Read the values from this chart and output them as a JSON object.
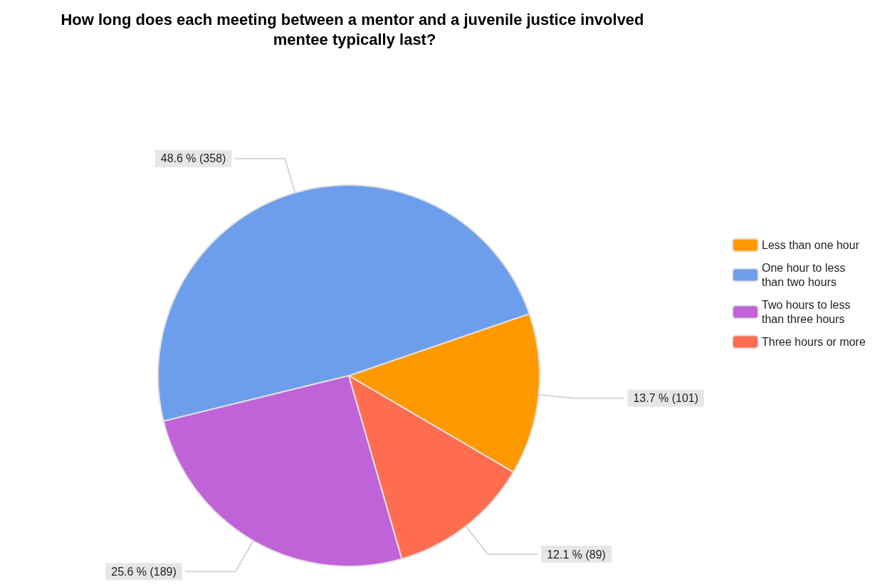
{
  "chart_data": {
    "type": "pie",
    "title": "How long does each meeting between a mentor and a juvenile justice involved mentee typically last?",
    "categories": [
      "Less than one hour",
      "One hour to less than two hours",
      "Two hours to less than three hours",
      "Three hours or more"
    ],
    "values": [
      101,
      358,
      189,
      89
    ],
    "value_labels": [
      "13.7 % (101)",
      "48.6 % (358)",
      "25.6 % (189)",
      "12.1 % (89)"
    ],
    "colors": [
      "#ff9900",
      "#6d9eeb",
      "#c062d8",
      "#ff6d50"
    ],
    "legend": "right"
  }
}
